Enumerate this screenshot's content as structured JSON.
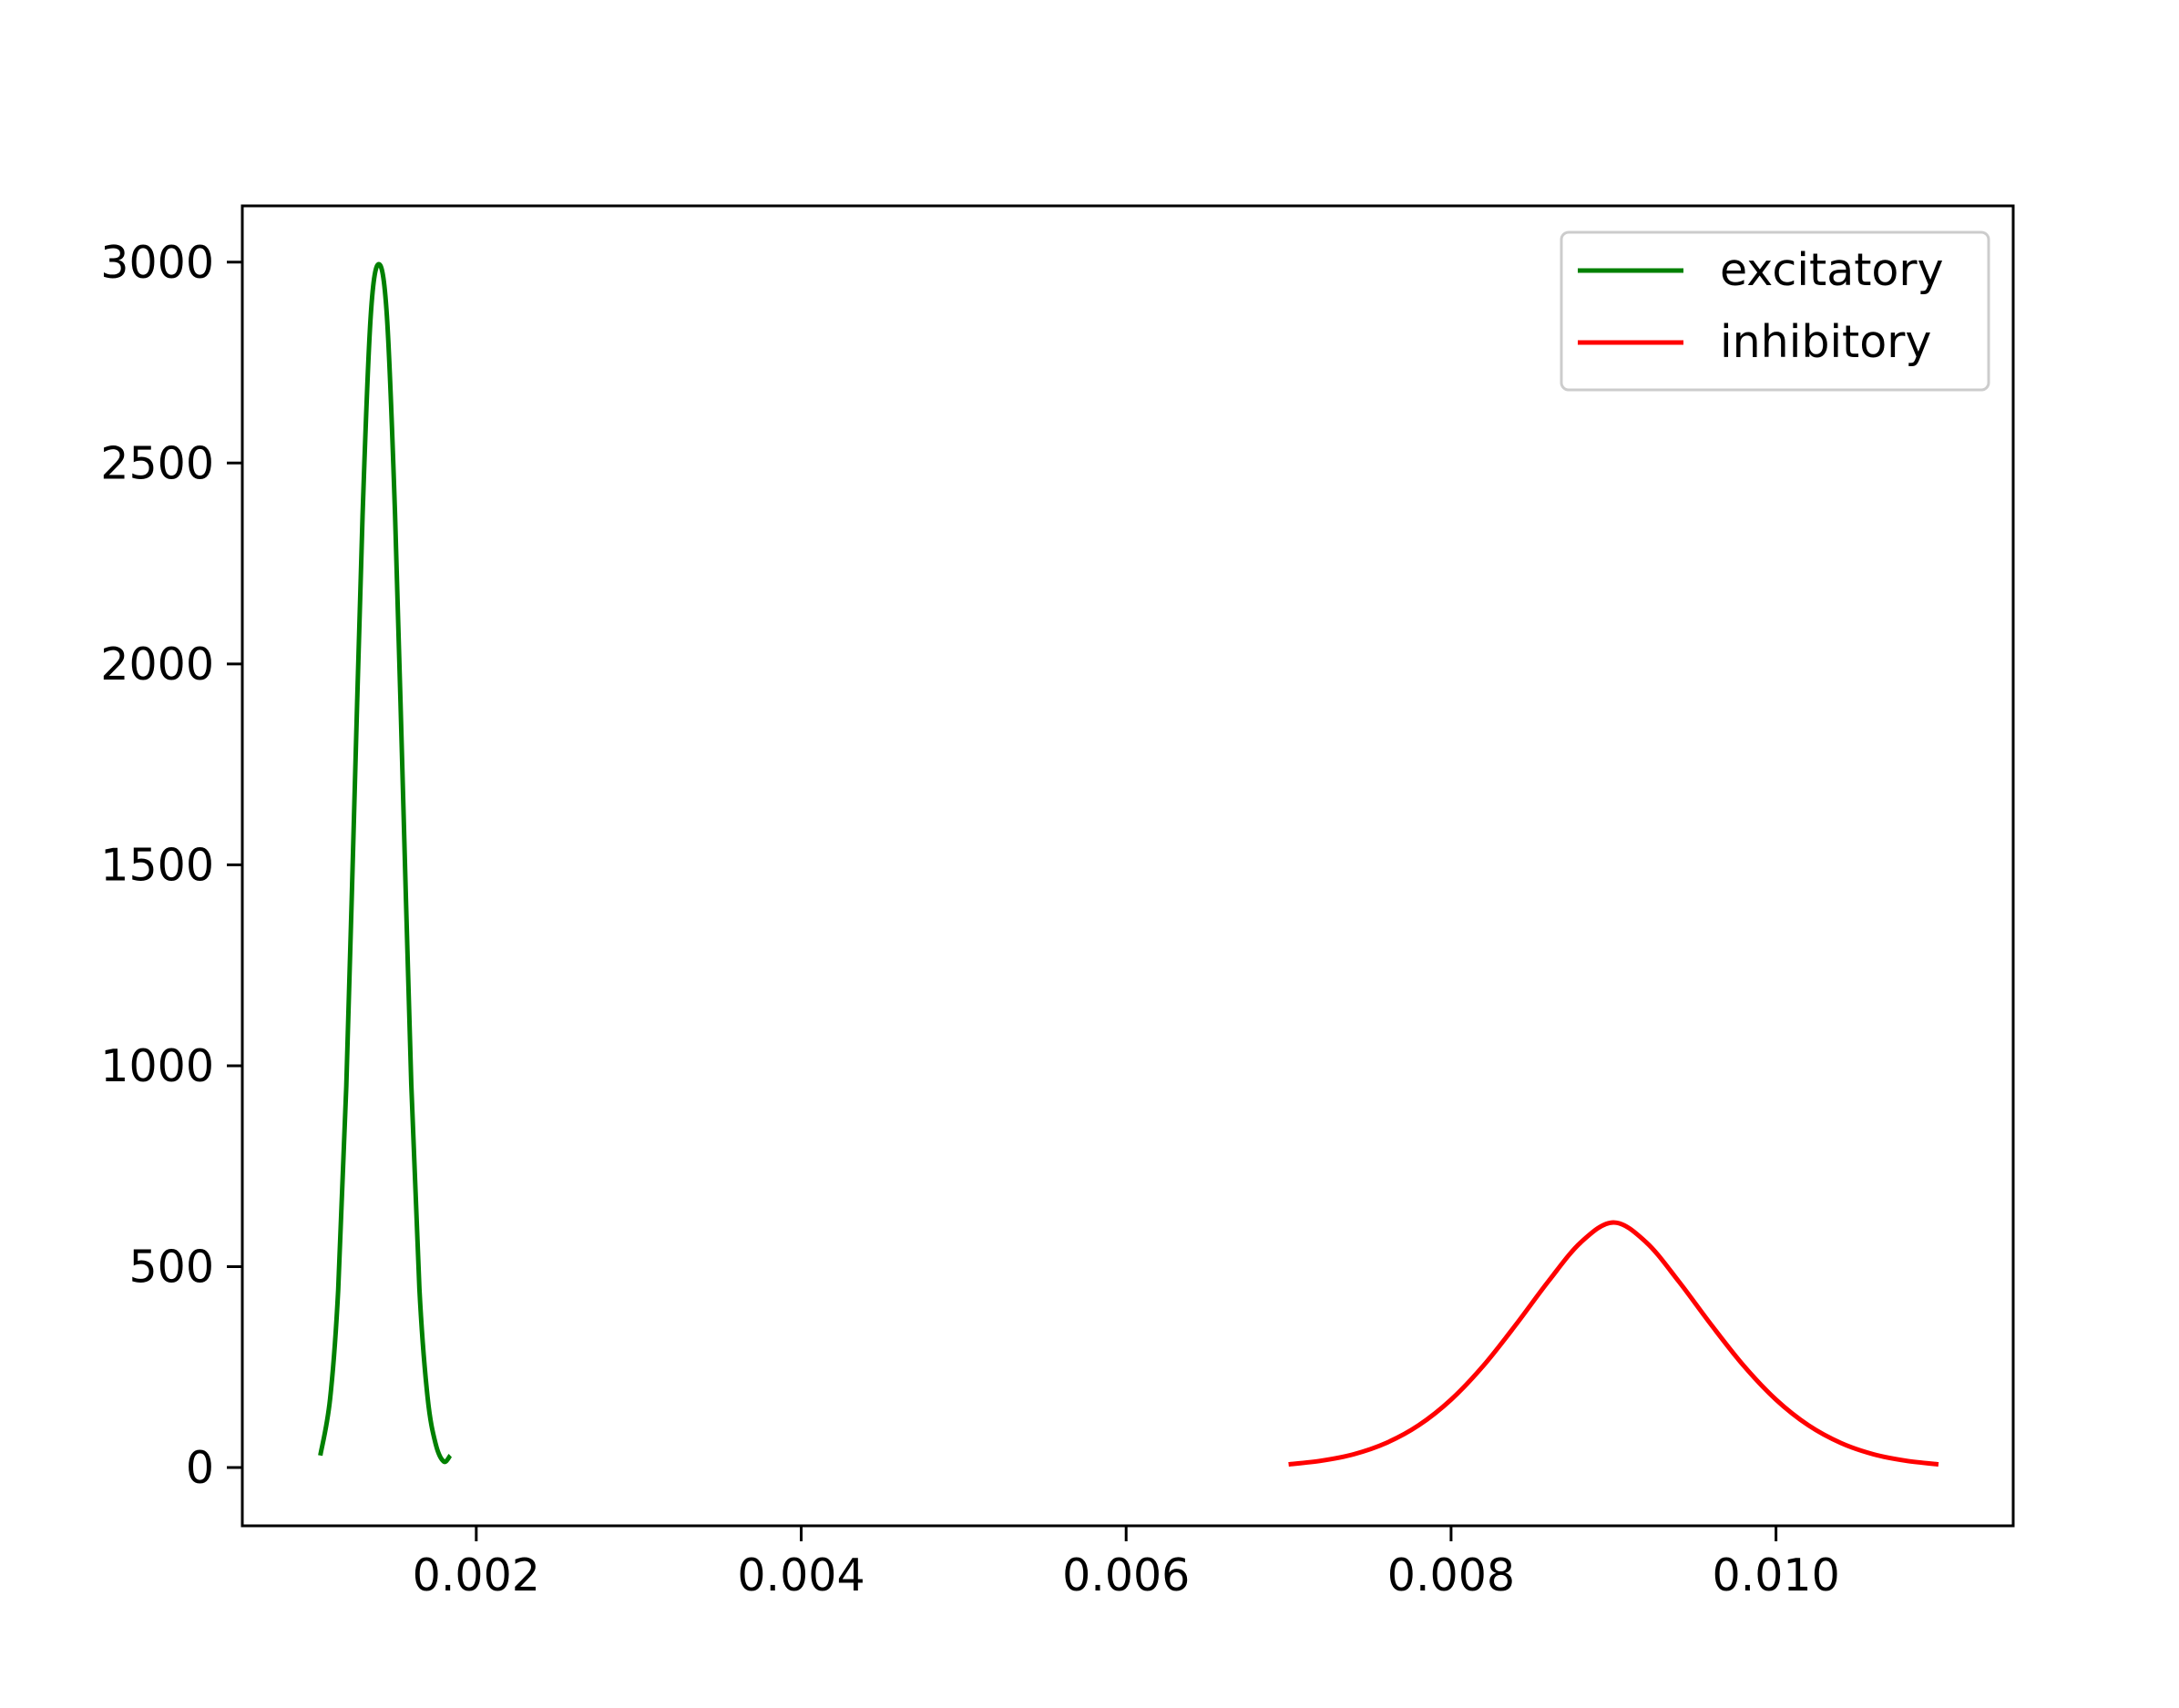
{
  "chart_data": {
    "type": "line",
    "title": "",
    "xlabel": "",
    "ylabel": "",
    "xlim": [
      0.00056,
      0.01146
    ],
    "ylim": [
      -145,
      3140
    ],
    "grid": false,
    "legend_position": "top-right",
    "x_ticks": [
      {
        "value": 0.002,
        "label": "0.002"
      },
      {
        "value": 0.004,
        "label": "0.004"
      },
      {
        "value": 0.006,
        "label": "0.006"
      },
      {
        "value": 0.008,
        "label": "0.008"
      },
      {
        "value": 0.01,
        "label": "0.010"
      }
    ],
    "y_ticks": [
      {
        "value": 0,
        "label": "0"
      },
      {
        "value": 500,
        "label": "500"
      },
      {
        "value": 1000,
        "label": "1000"
      },
      {
        "value": 1500,
        "label": "1500"
      },
      {
        "value": 2000,
        "label": "2000"
      },
      {
        "value": 2500,
        "label": "2500"
      },
      {
        "value": 3000,
        "label": "3000"
      }
    ],
    "series": [
      {
        "name": "excitatory",
        "color": "#008000",
        "x": [
          0.00104,
          0.0011,
          0.00115,
          0.0012,
          0.00125,
          0.0013,
          0.00135,
          0.0014,
          0.00145,
          0.0015,
          0.00155,
          0.0016,
          0.00165,
          0.0017,
          0.00175,
          0.0018,
          0.00184
        ],
        "y": [
          30,
          170,
          441,
          949,
          1658,
          2367,
          2864,
          2995,
          2865,
          2373,
          1666,
          954,
          445,
          176,
          59,
          15,
          30
        ]
      },
      {
        "name": "inhibitory",
        "color": "#ff0000",
        "x": [
          0.007,
          0.0072,
          0.0074,
          0.0076,
          0.0078,
          0.008,
          0.0082,
          0.0084,
          0.0086,
          0.0088,
          0.009,
          0.0092,
          0.0094,
          0.0096,
          0.0098,
          0.01,
          0.0102,
          0.0104,
          0.0106,
          0.0108,
          0.011
        ],
        "y": [
          8,
          17,
          33,
          61,
          105,
          169,
          254,
          356,
          464,
          561,
          610,
          561,
          464,
          356,
          254,
          169,
          105,
          61,
          33,
          17,
          8
        ]
      }
    ]
  },
  "colors": {
    "axis": "#000000",
    "legend_border": "#cccccc",
    "background": "#ffffff"
  }
}
